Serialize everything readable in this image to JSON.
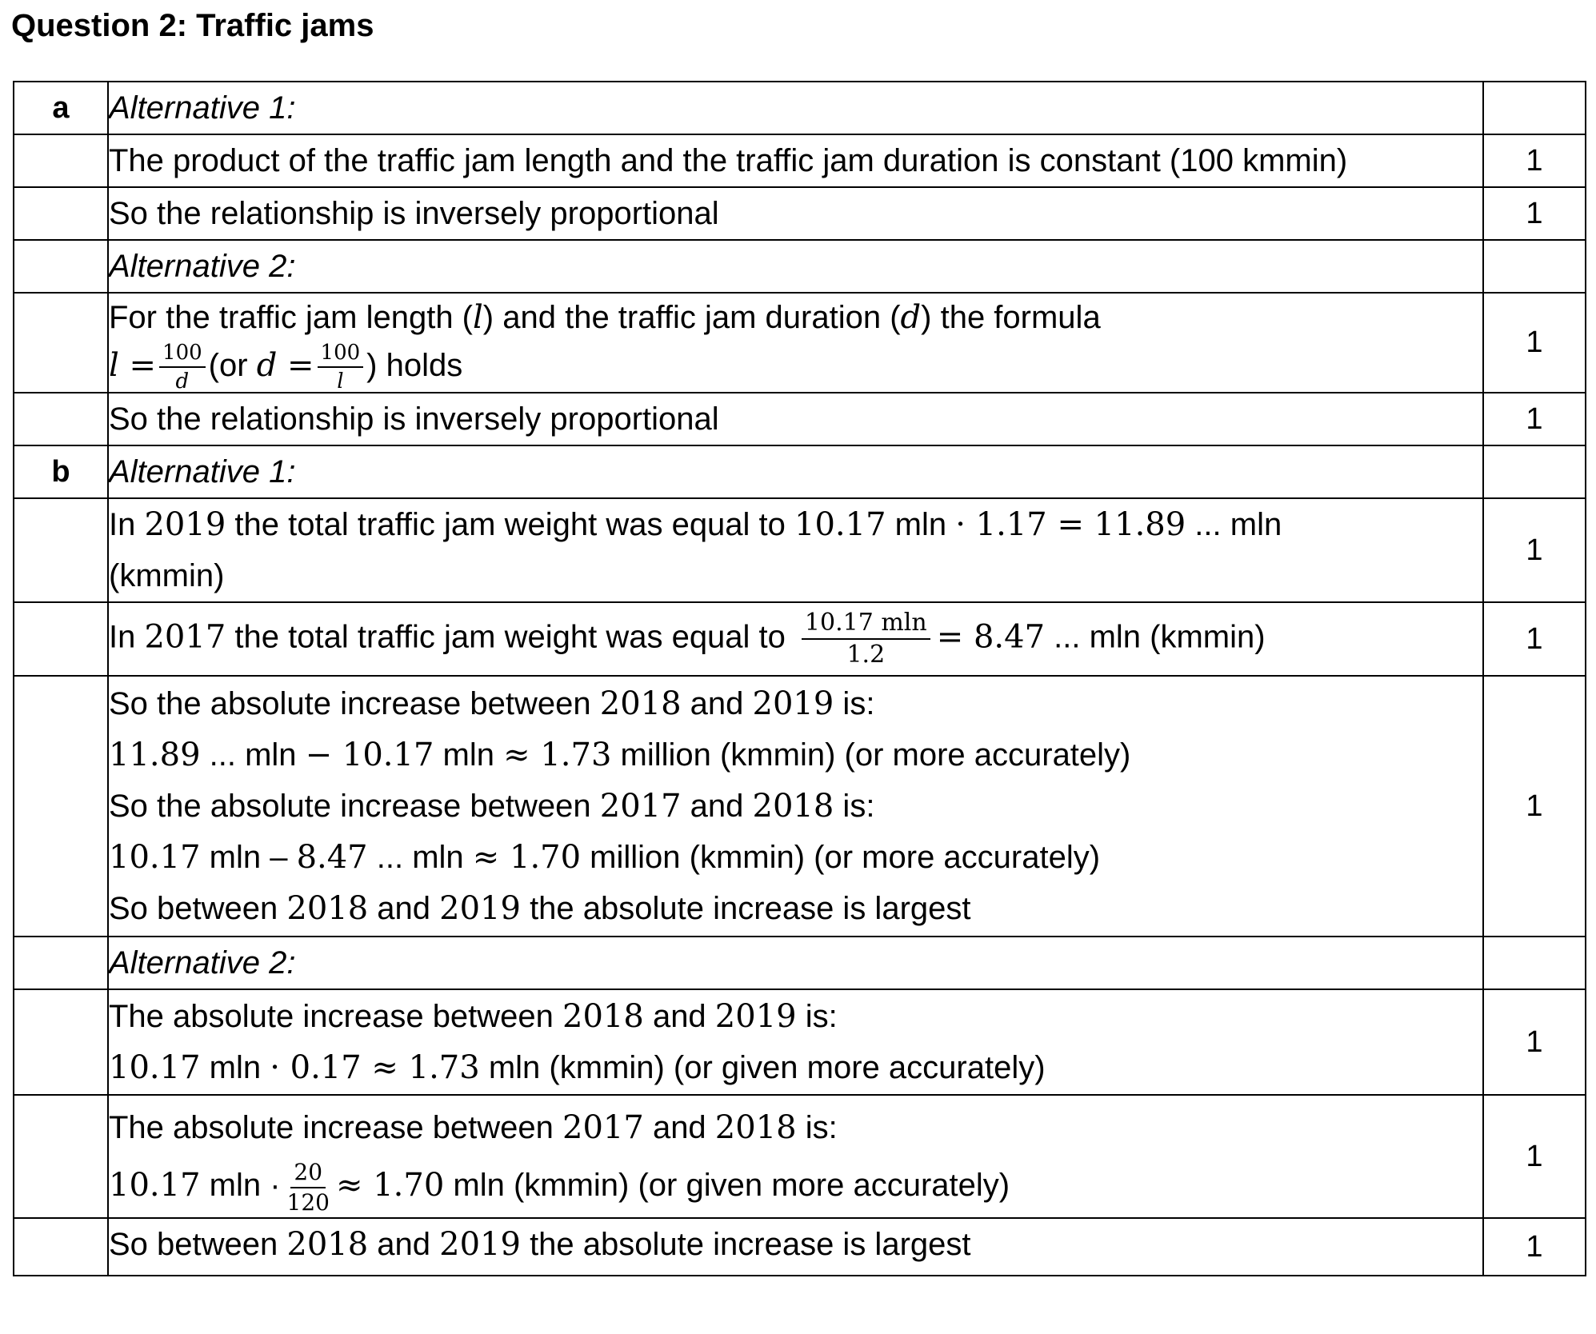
{
  "title": "Question 2: Traffic jams",
  "part_a": {
    "label": "a",
    "alt1_heading": "Alternative 1:",
    "alt1_line1": "The product of the traffic jam length and the traffic jam duration is constant (100 kmmin)",
    "alt1_line1_points": "1",
    "alt1_line2": "So the relationship is inversely proportional",
    "alt1_line2_points": "1",
    "alt2_heading": "Alternative 2:",
    "alt2_formula_intro": "For the traffic jam length (",
    "alt2_var_l": "l",
    "alt2_formula_mid": ") and the traffic jam duration (",
    "alt2_var_d": "d",
    "alt2_formula_end": ") the formula",
    "alt2_eq_lhs": "l =",
    "alt2_frac1_num": "100",
    "alt2_frac1_den": "d",
    "alt2_or": "(or",
    "alt2_eq2_lhs": "d =",
    "alt2_frac2_num": "100",
    "alt2_frac2_den": "l",
    "alt2_holds": ") holds",
    "alt2_formula_points": "1",
    "alt2_conclusion": "So the relationship is inversely proportional",
    "alt2_conclusion_points": "1"
  },
  "part_b": {
    "label": "b",
    "alt1_heading": "Alternative 1:",
    "alt1_2019_text": "In ",
    "alt1_2019_year": "2019",
    "alt1_2019_mid": " the total traffic jam weight was equal to ",
    "alt1_2019_calc": "10.17",
    "alt1_2019_mln": " mln ",
    "alt1_2019_op": "· 1.17 = 11.89",
    "alt1_2019_end": " ... mln",
    "alt1_2019_unit": "(kmmin)",
    "alt1_2019_points": "1",
    "alt1_2017_text": "In ",
    "alt1_2017_year": "2017",
    "alt1_2017_mid": " the total traffic jam weight was equal to",
    "alt1_2017_num": "10.17 mln",
    "alt1_2017_den": "1.2",
    "alt1_2017_eq": "= 8.47",
    "alt1_2017_end": " ... mln (kmmin)",
    "alt1_2017_points": "1",
    "inc_1819_head_a": "So the absolute increase between ",
    "inc_1819_head_y1": "2018",
    "inc_1819_head_b": " and ",
    "inc_1819_head_y2": "2019",
    "inc_1819_head_c": " is:",
    "inc_1819_calc_a": "11.89",
    "inc_1819_calc_b": " ... mln ",
    "inc_1819_calc_c": "− 10.17",
    "inc_1819_calc_d": " mln ",
    "inc_1819_calc_e": "≈ 1.73",
    "inc_1819_calc_f": " million (kmmin) (or more accurately)",
    "inc_1718_head_a": "So the absolute increase between ",
    "inc_1718_head_y1": "2017",
    "inc_1718_head_b": " and ",
    "inc_1718_head_y2": "2018",
    "inc_1718_head_c": " is:",
    "inc_1718_calc_a": "10.17",
    "inc_1718_calc_b": " mln – ",
    "inc_1718_calc_c": "8.47",
    "inc_1718_calc_d": " ... mln ",
    "inc_1718_calc_e": "≈ 1.70",
    "inc_1718_calc_f": " million (kmmin) (or more accurately)",
    "inc_conc_a": "So between ",
    "inc_conc_y1": "2018",
    "inc_conc_b": " and ",
    "inc_conc_y2": "2019",
    "inc_conc_c": " the absolute increase is largest",
    "inc_points": "1",
    "alt2_heading": "Alternative 2:",
    "alt2_1819_head_a": "The absolute increase between ",
    "alt2_1819_head_y1": "2018",
    "alt2_1819_head_b": " and ",
    "alt2_1819_head_y2": "2019",
    "alt2_1819_head_c": " is:",
    "alt2_1819_calc_a": "10.17",
    "alt2_1819_calc_b": " mln ",
    "alt2_1819_calc_c": "· 0.17 ≈ 1.73",
    "alt2_1819_calc_d": " mln (kmmin) (or given more accurately)",
    "alt2_1819_points": "1",
    "alt2_1718_head_a": "The absolute increase between ",
    "alt2_1718_head_y1": "2017",
    "alt2_1718_head_b": " and ",
    "alt2_1718_head_y2": "2018",
    "alt2_1718_head_c": " is:",
    "alt2_1718_calc_a": "10.17",
    "alt2_1718_calc_b": " mln ·",
    "alt2_1718_frac_num": "20",
    "alt2_1718_frac_den": "120",
    "alt2_1718_calc_c": "≈ 1.70",
    "alt2_1718_calc_d": " mln (kmmin) (or given more accurately)",
    "alt2_1718_points": "1",
    "alt2_conc_a": "So between ",
    "alt2_conc_y1": "2018",
    "alt2_conc_b": " and ",
    "alt2_conc_y2": "2019",
    "alt2_conc_c": " the absolute increase is largest",
    "alt2_conc_points": "1"
  }
}
